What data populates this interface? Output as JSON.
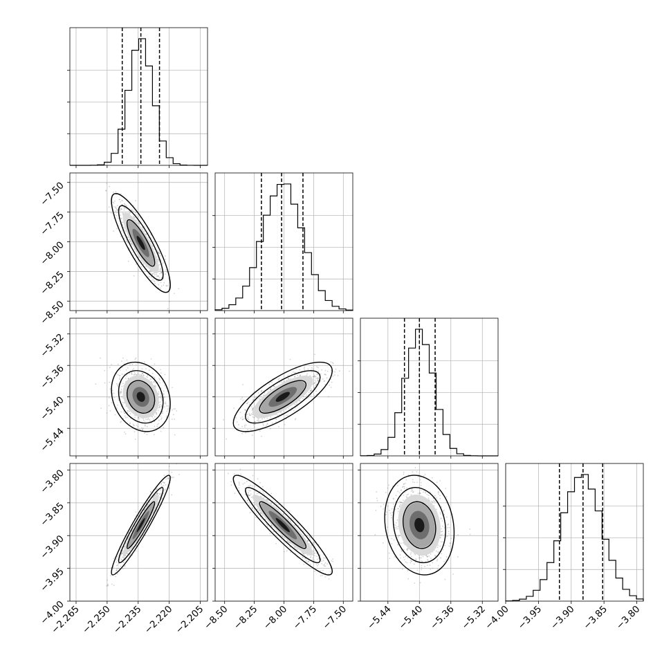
{
  "chart_data": {
    "type": "corner",
    "title": "",
    "n_params": 4,
    "params": [
      {
        "name": "",
        "range": [
          -2.268,
          -2.2015
        ],
        "ticks": [
          -2.265,
          -2.25,
          -2.235,
          -2.22,
          -2.205
        ],
        "tick_labels": [
          "−2.265",
          "−2.250",
          "−2.235",
          "−2.220",
          "−2.205"
        ],
        "quantiles": [
          -2.2427,
          -2.2337,
          -2.2247
        ],
        "mean": -2.2337,
        "sigma": 0.0058
      },
      {
        "name": "",
        "range": [
          -8.58,
          -7.42
        ],
        "ticks": [
          -8.5,
          -8.25,
          -8.0,
          -7.75,
          -7.5
        ],
        "tick_labels": [
          "−8.50",
          "−8.25",
          "−8.00",
          "−7.75",
          "−7.50"
        ],
        "quantiles": [
          -8.19,
          -8.02,
          -7.84
        ],
        "mean": -8.01,
        "sigma": 0.17
      },
      {
        "name": "",
        "range": [
          -5.475,
          -5.3
        ],
        "ticks": [
          -5.44,
          -5.4,
          -5.36,
          -5.32
        ],
        "tick_labels": [
          "−5.44",
          "−5.40",
          "−5.36",
          "−5.32"
        ],
        "quantiles": [
          -5.419,
          -5.4,
          -5.38
        ],
        "mean": -5.4,
        "sigma": 0.018
      },
      {
        "name": "",
        "range": [
          -4.0,
          -3.79
        ],
        "ticks": [
          -4.0,
          -3.95,
          -3.9,
          -3.85,
          -3.8
        ],
        "tick_labels": [
          "−4.00",
          "−3.95",
          "−3.90",
          "−3.85",
          "−3.80"
        ],
        "quantiles": [
          -3.918,
          -3.882,
          -3.852
        ],
        "mean": -3.884,
        "sigma": 0.031
      }
    ],
    "correlations": [
      {
        "row": 1,
        "col": 0,
        "rho": -0.85
      },
      {
        "row": 2,
        "col": 0,
        "rho": -0.2
      },
      {
        "row": 2,
        "col": 1,
        "rho": 0.75
      },
      {
        "row": 3,
        "col": 0,
        "rho": 0.95
      },
      {
        "row": 3,
        "col": 1,
        "rho": -0.93
      },
      {
        "row": 3,
        "col": 2,
        "rho": -0.15
      }
    ],
    "histogram_bins": 20,
    "grid": true,
    "colors": {
      "line": "#000000",
      "grid": "#b0b0b0",
      "points": "#7f7f7f"
    }
  }
}
